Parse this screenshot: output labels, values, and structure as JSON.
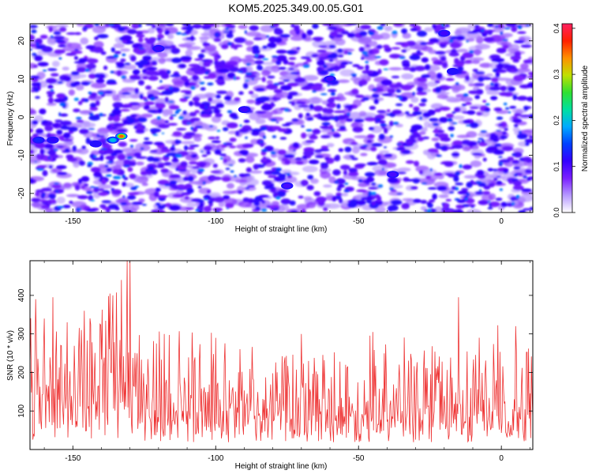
{
  "title": "KOM5.2025.349.00.05.G01",
  "colors": {
    "line": "#ee3333",
    "axis": "#000000",
    "background": "#ffffff"
  },
  "chart_data": [
    {
      "type": "heatmap",
      "title": "",
      "xlabel": "Height of straight line (km)",
      "ylabel": "Frequency (Hz)",
      "xlim": [
        -165,
        11
      ],
      "ylim": [
        -25,
        24.5
      ],
      "x_ticks": [
        -150,
        -100,
        -50,
        0
      ],
      "x_tick_labels": [
        "-150",
        "-100",
        "-50",
        "0"
      ],
      "y_ticks": [
        -20,
        -10,
        0,
        10,
        20
      ],
      "y_tick_labels": [
        "-20",
        "-10",
        "0",
        "10",
        "20"
      ],
      "colorbar": {
        "label": "Normalized spectral amplitude",
        "range": [
          0.0,
          0.41
        ],
        "ticks": [
          0.0,
          0.1,
          0.2,
          0.3,
          0.4
        ],
        "tick_labels": [
          "0.0",
          "0.1",
          "0.2",
          "0.3",
          "0.4"
        ],
        "colormap": [
          "#ffffff",
          "#b699ff",
          "#7a1fff",
          "#3300ff",
          "#0040ff",
          "#00aaff",
          "#00e0a0",
          "#30e030",
          "#c0e000",
          "#ff9000",
          "#ff2000",
          "#ff2060"
        ]
      },
      "peaks": [
        {
          "x": -133,
          "y": -5,
          "value": 0.38
        },
        {
          "x": -136,
          "y": -6,
          "value": 0.22
        },
        {
          "x": -142,
          "y": -7,
          "value": 0.12
        },
        {
          "x": -162,
          "y": -6,
          "value": 0.14
        },
        {
          "x": -157,
          "y": -6,
          "value": 0.11
        },
        {
          "x": -17,
          "y": 12,
          "value": 0.12
        },
        {
          "x": -90,
          "y": 2,
          "value": 0.09
        },
        {
          "x": -60,
          "y": 10,
          "value": 0.08
        },
        {
          "x": -38,
          "y": -15,
          "value": 0.08
        },
        {
          "x": -120,
          "y": 18,
          "value": 0.09
        },
        {
          "x": -20,
          "y": 22,
          "value": 0.09
        },
        {
          "x": -75,
          "y": -18,
          "value": 0.08
        }
      ]
    },
    {
      "type": "line",
      "title": "",
      "xlabel": "Height of straight line (km)",
      "ylabel": "SNR (10 * v/v)",
      "xlim": [
        -165,
        11
      ],
      "ylim": [
        0,
        490
      ],
      "x_ticks": [
        -150,
        -100,
        -50,
        0
      ],
      "x_tick_labels": [
        "-150",
        "-100",
        "-50",
        "0"
      ],
      "y_ticks": [
        100,
        200,
        300,
        400
      ],
      "y_tick_labels": [
        "100",
        "200",
        "300",
        "400"
      ],
      "series": [
        {
          "name": "SNR",
          "x_step": 0.25,
          "baseline": [
            [
              -165,
              150
            ],
            [
              -155,
              165
            ],
            [
              -145,
              175
            ],
            [
              -135,
              170
            ],
            [
              -130,
              160
            ],
            [
              -125,
              140
            ],
            [
              -100,
              125
            ],
            [
              -75,
              120
            ],
            [
              -50,
              122
            ],
            [
              -25,
              125
            ],
            [
              0,
              130
            ],
            [
              11,
              135
            ]
          ],
          "spikes": [
            {
              "x": -131,
              "y": 490
            },
            {
              "x": -130,
              "y": 490
            },
            {
              "x": -133,
              "y": 440
            },
            {
              "x": -163,
              "y": 390
            },
            {
              "x": -157,
              "y": 395
            },
            {
              "x": -160,
              "y": 340
            },
            {
              "x": -146,
              "y": 360
            },
            {
              "x": -152,
              "y": 330
            },
            {
              "x": -136,
              "y": 400
            },
            {
              "x": -15,
              "y": 395
            },
            {
              "x": -147,
              "y": 310
            },
            {
              "x": 5,
              "y": 320
            },
            {
              "x": -118,
              "y": 300
            },
            {
              "x": -100,
              "y": 290
            },
            {
              "x": -70,
              "y": 300
            },
            {
              "x": -45,
              "y": 305
            }
          ]
        }
      ]
    }
  ]
}
